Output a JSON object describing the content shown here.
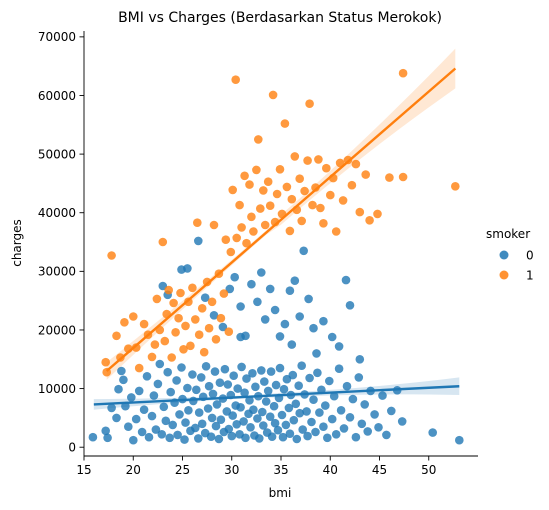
{
  "chart_data": {
    "type": "scatter",
    "title": "BMI vs Charges (Berdasarkan Status Merokok)",
    "xlabel": "bmi",
    "ylabel": "charges",
    "xlim": [
      15.0,
      55.0
    ],
    "ylim": [
      -1500,
      71000
    ],
    "xticks": [
      15,
      20,
      25,
      30,
      35,
      40,
      45,
      50
    ],
    "yticks": [
      0,
      10000,
      20000,
      30000,
      40000,
      50000,
      60000,
      70000
    ],
    "grid": false,
    "legend": {
      "title": "smoker",
      "placement": "right",
      "entries": [
        "0",
        "1"
      ]
    },
    "colors": {
      "0": "#1f77b4",
      "1": "#ff7f0e"
    },
    "series": [
      {
        "name": "0",
        "color": "#1f77b4",
        "regression": {
          "x": [
            16.0,
            53.1
          ],
          "y": [
            7300,
            10400
          ],
          "ci_halfwidth_ends": [
            900,
            1500
          ]
        },
        "points": [
          [
            15.9,
            1700
          ],
          [
            17.2,
            2800
          ],
          [
            17.4,
            1600
          ],
          [
            17.8,
            6700
          ],
          [
            18.3,
            5000
          ],
          [
            18.5,
            9900
          ],
          [
            18.8,
            13000
          ],
          [
            19.0,
            11500
          ],
          [
            19.2,
            7000
          ],
          [
            19.5,
            3500
          ],
          [
            19.8,
            8500
          ],
          [
            20.0,
            1200
          ],
          [
            20.3,
            4800
          ],
          [
            20.6,
            9600
          ],
          [
            20.9,
            2600
          ],
          [
            21.1,
            6400
          ],
          [
            21.4,
            12100
          ],
          [
            21.6,
            1700
          ],
          [
            21.9,
            5300
          ],
          [
            22.1,
            8800
          ],
          [
            22.3,
            3000
          ],
          [
            22.5,
            10800
          ],
          [
            22.7,
            14200
          ],
          [
            22.9,
            2200
          ],
          [
            23.1,
            6900
          ],
          [
            23.3,
            4500
          ],
          [
            23.5,
            12800
          ],
          [
            23.7,
            1600
          ],
          [
            23.8,
            9400
          ],
          [
            24.0,
            3800
          ],
          [
            24.2,
            7600
          ],
          [
            24.4,
            11400
          ],
          [
            24.5,
            2100
          ],
          [
            24.7,
            5600
          ],
          [
            24.9,
            13600
          ],
          [
            25.0,
            8200
          ],
          [
            25.2,
            1300
          ],
          [
            25.3,
            4200
          ],
          [
            25.5,
            10100
          ],
          [
            25.6,
            6300
          ],
          [
            25.8,
            2800
          ],
          [
            26.0,
            12400
          ],
          [
            26.1,
            7900
          ],
          [
            26.3,
            3300
          ],
          [
            26.4,
            9800
          ],
          [
            26.6,
            1500
          ],
          [
            26.7,
            5900
          ],
          [
            26.9,
            11900
          ],
          [
            27.0,
            4000
          ],
          [
            27.1,
            8600
          ],
          [
            27.3,
            2400
          ],
          [
            27.4,
            13800
          ],
          [
            27.6,
            6600
          ],
          [
            27.7,
            10400
          ],
          [
            27.9,
            1800
          ],
          [
            28.0,
            5000
          ],
          [
            28.1,
            9100
          ],
          [
            28.3,
            12900
          ],
          [
            28.4,
            3600
          ],
          [
            28.5,
            7300
          ],
          [
            28.7,
            1400
          ],
          [
            28.8,
            11000
          ],
          [
            28.9,
            4700
          ],
          [
            29.1,
            8300
          ],
          [
            29.2,
            2600
          ],
          [
            29.3,
            13300
          ],
          [
            29.5,
            6100
          ],
          [
            29.6,
            10700
          ],
          [
            29.7,
            3100
          ],
          [
            29.9,
            8900
          ],
          [
            30.0,
            1900
          ],
          [
            30.1,
            5400
          ],
          [
            30.2,
            12200
          ],
          [
            30.4,
            7100
          ],
          [
            30.5,
            3900
          ],
          [
            30.6,
            10000
          ],
          [
            30.8,
            2200
          ],
          [
            30.9,
            6800
          ],
          [
            31.0,
            13700
          ],
          [
            31.2,
            4400
          ],
          [
            31.3,
            9300
          ],
          [
            31.4,
            1600
          ],
          [
            31.5,
            11700
          ],
          [
            31.7,
            5700
          ],
          [
            31.8,
            8000
          ],
          [
            31.9,
            3400
          ],
          [
            32.1,
            12600
          ],
          [
            32.2,
            6400
          ],
          [
            32.3,
            2000
          ],
          [
            32.4,
            10300
          ],
          [
            32.6,
            4900
          ],
          [
            32.7,
            8700
          ],
          [
            32.8,
            1500
          ],
          [
            33.0,
            13100
          ],
          [
            33.1,
            6000
          ],
          [
            33.2,
            3700
          ],
          [
            33.3,
            11200
          ],
          [
            33.5,
            7800
          ],
          [
            33.6,
            2500
          ],
          [
            33.7,
            9600
          ],
          [
            33.9,
            5200
          ],
          [
            34.0,
            12900
          ],
          [
            34.1,
            1800
          ],
          [
            34.3,
            7000
          ],
          [
            34.4,
            4100
          ],
          [
            34.5,
            10600
          ],
          [
            34.7,
            2900
          ],
          [
            34.8,
            8400
          ],
          [
            34.9,
            13500
          ],
          [
            35.1,
            5500
          ],
          [
            35.2,
            1700
          ],
          [
            35.3,
            9900
          ],
          [
            35.5,
            3800
          ],
          [
            35.6,
            11600
          ],
          [
            35.8,
            6700
          ],
          [
            35.9,
            2300
          ],
          [
            36.0,
            8900
          ],
          [
            36.2,
            12300
          ],
          [
            36.3,
            4600
          ],
          [
            36.5,
            7400
          ],
          [
            36.6,
            1400
          ],
          [
            36.8,
            10500
          ],
          [
            36.9,
            5800
          ],
          [
            37.1,
            13900
          ],
          [
            37.2,
            3000
          ],
          [
            37.4,
            9000
          ],
          [
            37.6,
            6100
          ],
          [
            37.7,
            1900
          ],
          [
            37.9,
            11800
          ],
          [
            38.1,
            4300
          ],
          [
            38.3,
            8100
          ],
          [
            38.5,
            2600
          ],
          [
            38.7,
            12700
          ],
          [
            38.9,
            5900
          ],
          [
            39.1,
            9800
          ],
          [
            39.3,
            3500
          ],
          [
            39.5,
            7100
          ],
          [
            39.7,
            1600
          ],
          [
            39.9,
            11300
          ],
          [
            40.2,
            4800
          ],
          [
            40.4,
            8700
          ],
          [
            40.6,
            2200
          ],
          [
            40.9,
            13400
          ],
          [
            41.1,
            6300
          ],
          [
            41.4,
            3200
          ],
          [
            41.7,
            10400
          ],
          [
            42.0,
            5100
          ],
          [
            42.3,
            8200
          ],
          [
            42.6,
            1700
          ],
          [
            42.9,
            11900
          ],
          [
            43.2,
            4000
          ],
          [
            43.5,
            7300
          ],
          [
            43.8,
            2700
          ],
          [
            44.1,
            9600
          ],
          [
            44.5,
            5600
          ],
          [
            44.9,
            3400
          ],
          [
            45.3,
            8800
          ],
          [
            45.7,
            2100
          ],
          [
            46.2,
            6200
          ],
          [
            46.8,
            9700
          ],
          [
            47.3,
            4400
          ],
          [
            50.4,
            2500
          ],
          [
            53.1,
            1200
          ],
          [
            23.0,
            27500
          ],
          [
            23.5,
            26000
          ],
          [
            24.9,
            30300
          ],
          [
            25.5,
            30500
          ],
          [
            26.6,
            35200
          ],
          [
            27.3,
            25500
          ],
          [
            28.2,
            22500
          ],
          [
            29.1,
            20500
          ],
          [
            29.8,
            27000
          ],
          [
            30.3,
            29000
          ],
          [
            30.9,
            24000
          ],
          [
            31.4,
            19000
          ],
          [
            32.0,
            27800
          ],
          [
            32.6,
            24800
          ],
          [
            33.0,
            29800
          ],
          [
            33.4,
            21800
          ],
          [
            33.9,
            27000
          ],
          [
            34.4,
            23400
          ],
          [
            34.9,
            18900
          ],
          [
            35.4,
            21000
          ],
          [
            35.9,
            26700
          ],
          [
            36.4,
            28400
          ],
          [
            36.9,
            22300
          ],
          [
            37.3,
            33500
          ],
          [
            37.8,
            25300
          ],
          [
            38.3,
            20300
          ],
          [
            38.6,
            16000
          ],
          [
            39.3,
            21500
          ],
          [
            40.2,
            18800
          ],
          [
            40.9,
            17200
          ],
          [
            41.6,
            28500
          ],
          [
            42.0,
            24200
          ],
          [
            43.0,
            15000
          ],
          [
            30.9,
            18800
          ],
          [
            36.1,
            17500
          ]
        ]
      },
      {
        "name": "1",
        "color": "#ff7f0e",
        "regression": {
          "x": [
            17.3,
            52.7
          ],
          "y": [
            13000,
            64600
          ],
          "ci_halfwidth_ends": [
            1500,
            3400
          ]
        },
        "points": [
          [
            17.2,
            14500
          ],
          [
            17.3,
            12800
          ],
          [
            17.8,
            32700
          ],
          [
            18.3,
            19000
          ],
          [
            18.7,
            15300
          ],
          [
            19.1,
            21300
          ],
          [
            19.5,
            16800
          ],
          [
            20.0,
            22300
          ],
          [
            20.3,
            17000
          ],
          [
            20.6,
            13500
          ],
          [
            21.1,
            21000
          ],
          [
            21.5,
            19200
          ],
          [
            21.9,
            15400
          ],
          [
            22.2,
            17500
          ],
          [
            22.4,
            25300
          ],
          [
            22.7,
            20000
          ],
          [
            23.0,
            35000
          ],
          [
            23.2,
            18100
          ],
          [
            23.4,
            22700
          ],
          [
            23.6,
            26800
          ],
          [
            23.9,
            15300
          ],
          [
            24.1,
            24600
          ],
          [
            24.3,
            19600
          ],
          [
            24.6,
            22000
          ],
          [
            24.8,
            26300
          ],
          [
            25.1,
            16700
          ],
          [
            25.3,
            20700
          ],
          [
            25.6,
            24800
          ],
          [
            25.8,
            17300
          ],
          [
            26.0,
            27200
          ],
          [
            26.3,
            21800
          ],
          [
            26.5,
            38300
          ],
          [
            26.7,
            19200
          ],
          [
            27.0,
            23700
          ],
          [
            27.2,
            16200
          ],
          [
            27.5,
            28200
          ],
          [
            27.7,
            20300
          ],
          [
            28.0,
            24800
          ],
          [
            28.2,
            37900
          ],
          [
            28.4,
            18400
          ],
          [
            28.7,
            29600
          ],
          [
            28.9,
            22000
          ],
          [
            29.2,
            26200
          ],
          [
            29.4,
            35400
          ],
          [
            29.7,
            19700
          ],
          [
            29.9,
            33300
          ],
          [
            30.1,
            43900
          ],
          [
            30.4,
            62700
          ],
          [
            30.5,
            35700
          ],
          [
            30.8,
            41300
          ],
          [
            31.0,
            37500
          ],
          [
            31.3,
            46300
          ],
          [
            31.5,
            34800
          ],
          [
            31.8,
            44800
          ],
          [
            32.0,
            39300
          ],
          [
            32.2,
            36800
          ],
          [
            32.5,
            47300
          ],
          [
            32.7,
            52500
          ],
          [
            32.9,
            40700
          ],
          [
            33.2,
            43800
          ],
          [
            33.4,
            37900
          ],
          [
            33.7,
            45300
          ],
          [
            33.9,
            41200
          ],
          [
            34.2,
            60100
          ],
          [
            34.4,
            38400
          ],
          [
            34.6,
            43200
          ],
          [
            34.9,
            47400
          ],
          [
            35.1,
            39800
          ],
          [
            35.4,
            55200
          ],
          [
            35.6,
            44400
          ],
          [
            35.9,
            36900
          ],
          [
            36.1,
            42300
          ],
          [
            36.4,
            49600
          ],
          [
            36.6,
            40500
          ],
          [
            36.9,
            45800
          ],
          [
            37.1,
            38600
          ],
          [
            37.4,
            43700
          ],
          [
            37.7,
            48900
          ],
          [
            37.9,
            58600
          ],
          [
            38.2,
            41300
          ],
          [
            38.5,
            44300
          ],
          [
            38.8,
            49100
          ],
          [
            39.0,
            40800
          ],
          [
            39.3,
            38200
          ],
          [
            39.6,
            47600
          ],
          [
            40.0,
            43000
          ],
          [
            40.3,
            45900
          ],
          [
            40.6,
            36800
          ],
          [
            41.0,
            48500
          ],
          [
            41.3,
            42100
          ],
          [
            41.8,
            49000
          ],
          [
            42.2,
            44700
          ],
          [
            42.6,
            48300
          ],
          [
            43.0,
            40100
          ],
          [
            43.6,
            46500
          ],
          [
            44.0,
            38700
          ],
          [
            44.8,
            39800
          ],
          [
            46.0,
            46000
          ],
          [
            47.4,
            46100
          ],
          [
            47.4,
            63800
          ],
          [
            52.7,
            44500
          ]
        ]
      }
    ]
  }
}
